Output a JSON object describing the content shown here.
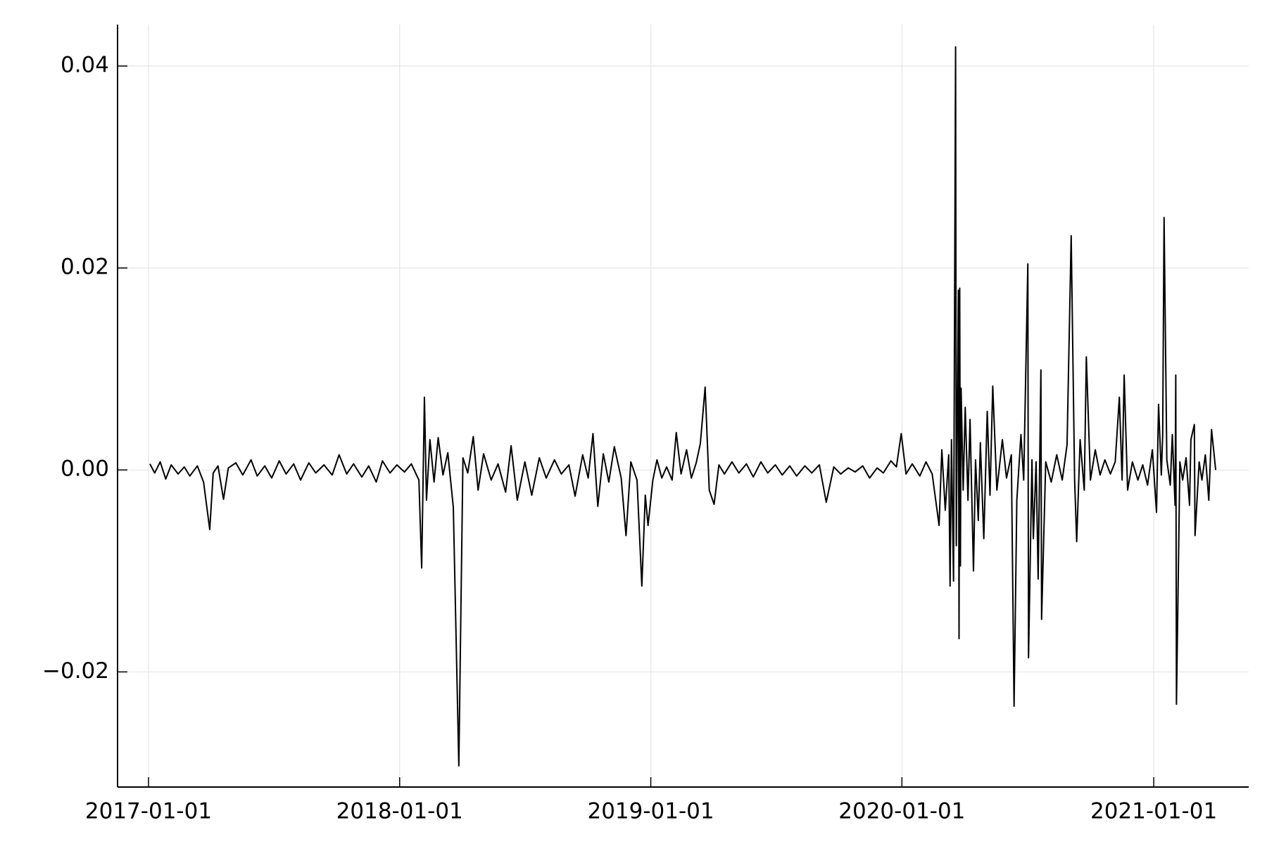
{
  "chart_data": {
    "type": "line",
    "color": "#000000",
    "grid": true,
    "xlim": [
      "2016-11-17",
      "2021-05-19"
    ],
    "xticks": [
      "2017-01-01",
      "2018-01-01",
      "2019-01-01",
      "2020-01-01",
      "2021-01-01"
    ],
    "ylim": [
      -0.0314,
      0.0441
    ],
    "yticks": [
      {
        "value": -0.02,
        "label": "−0.02"
      },
      {
        "value": 0,
        "label": "0.00"
      },
      0.02,
      0.04
    ],
    "x": [
      "2017-01-03",
      "2017-01-10",
      "2017-01-18",
      "2017-01-26",
      "2017-02-03",
      "2017-02-13",
      "2017-02-22",
      "2017-03-02",
      "2017-03-13",
      "2017-03-22",
      "2017-03-31",
      "2017-04-05",
      "2017-04-12",
      "2017-04-20",
      "2017-04-27",
      "2017-05-08",
      "2017-05-18",
      "2017-05-30",
      "2017-06-08",
      "2017-06-19",
      "2017-06-29",
      "2017-07-10",
      "2017-07-20",
      "2017-07-31",
      "2017-08-10",
      "2017-08-22",
      "2017-09-01",
      "2017-09-13",
      "2017-09-25",
      "2017-10-05",
      "2017-10-16",
      "2017-10-26",
      "2017-11-07",
      "2017-11-17",
      "2017-11-28",
      "2017-12-07",
      "2017-12-18",
      "2017-12-28",
      "2018-01-08",
      "2018-01-18",
      "2018-01-29",
      "2018-02-02",
      "2018-02-06",
      "2018-02-09",
      "2018-02-14",
      "2018-02-20",
      "2018-02-26",
      "2018-03-05",
      "2018-03-12",
      "2018-03-20",
      "2018-03-28",
      "2018-04-03",
      "2018-04-10",
      "2018-04-18",
      "2018-04-25",
      "2018-05-03",
      "2018-05-14",
      "2018-05-24",
      "2018-06-04",
      "2018-06-12",
      "2018-06-21",
      "2018-07-02",
      "2018-07-12",
      "2018-07-23",
      "2018-08-02",
      "2018-08-14",
      "2018-08-24",
      "2018-09-04",
      "2018-09-13",
      "2018-09-24",
      "2018-10-02",
      "2018-10-09",
      "2018-10-16",
      "2018-10-24",
      "2018-11-01",
      "2018-11-09",
      "2018-11-19",
      "2018-11-26",
      "2018-12-03",
      "2018-12-12",
      "2018-12-19",
      "2018-12-24",
      "2018-12-28",
      "2019-01-04",
      "2019-01-10",
      "2019-01-17",
      "2019-01-24",
      "2019-02-01",
      "2019-02-07",
      "2019-02-14",
      "2019-02-22",
      "2019-03-01",
      "2019-03-08",
      "2019-03-14",
      "2019-03-21",
      "2019-03-27",
      "2019-04-03",
      "2019-04-10",
      "2019-04-18",
      "2019-04-29",
      "2019-05-09",
      "2019-05-20",
      "2019-05-30",
      "2019-06-10",
      "2019-06-20",
      "2019-07-01",
      "2019-07-11",
      "2019-07-22",
      "2019-08-01",
      "2019-08-13",
      "2019-08-23",
      "2019-09-03",
      "2019-09-13",
      "2019-09-24",
      "2019-10-04",
      "2019-10-15",
      "2019-10-25",
      "2019-11-05",
      "2019-11-15",
      "2019-11-26",
      "2019-12-05",
      "2019-12-16",
      "2019-12-24",
      "2019-12-31",
      "2020-01-07",
      "2020-01-16",
      "2020-01-27",
      "2020-02-05",
      "2020-02-14",
      "2020-02-24",
      "2020-02-28",
      "2020-03-04",
      "2020-03-09",
      "2020-03-11",
      "2020-03-13",
      "2020-03-16",
      "2020-03-19",
      "2020-03-20",
      "2020-03-23",
      "2020-03-24",
      "2020-03-25",
      "2020-03-26",
      "2020-03-27",
      "2020-03-30",
      "2020-04-02",
      "2020-04-06",
      "2020-04-09",
      "2020-04-14",
      "2020-04-17",
      "2020-04-21",
      "2020-04-24",
      "2020-04-29",
      "2020-05-04",
      "2020-05-08",
      "2020-05-12",
      "2020-05-18",
      "2020-05-26",
      "2020-06-01",
      "2020-06-08",
      "2020-06-12",
      "2020-06-16",
      "2020-06-22",
      "2020-06-26",
      "2020-07-02",
      "2020-07-03",
      "2020-07-08",
      "2020-07-10",
      "2020-07-14",
      "2020-07-17",
      "2020-07-21",
      "2020-07-22",
      "2020-07-28",
      "2020-08-05",
      "2020-08-13",
      "2020-08-21",
      "2020-08-28",
      "2020-09-03",
      "2020-09-08",
      "2020-09-11",
      "2020-09-16",
      "2020-09-22",
      "2020-09-25",
      "2020-10-01",
      "2020-10-08",
      "2020-10-15",
      "2020-10-22",
      "2020-10-30",
      "2020-11-06",
      "2020-11-12",
      "2020-11-16",
      "2020-11-19",
      "2020-11-24",
      "2020-12-01",
      "2020-12-09",
      "2020-12-16",
      "2020-12-23",
      "2020-12-30",
      "2021-01-05",
      "2021-01-08",
      "2021-01-12",
      "2021-01-14",
      "2021-01-16",
      "2021-01-20",
      "2021-01-25",
      "2021-01-28",
      "2021-02-01",
      "2021-02-02",
      "2021-02-03",
      "2021-02-08",
      "2021-02-12",
      "2021-02-17",
      "2021-02-22",
      "2021-02-24",
      "2021-03-01",
      "2021-03-02",
      "2021-03-08",
      "2021-03-12",
      "2021-03-17",
      "2021-03-22",
      "2021-03-26",
      "2021-04-01"
    ],
    "values": [
      0.0006,
      -0.0003,
      0.0008,
      -0.0009,
      0.0005,
      -0.0004,
      0.0003,
      -0.0006,
      0.0004,
      -0.0012,
      -0.0059,
      -0.0003,
      0.0004,
      -0.0029,
      0.0002,
      0.0007,
      -0.0005,
      0.001,
      -0.0006,
      0.0004,
      -0.0008,
      0.0009,
      -0.0004,
      0.0006,
      -0.001,
      0.0007,
      -0.0003,
      0.0005,
      -0.0005,
      0.0015,
      -0.0004,
      0.0006,
      -0.0007,
      0.0004,
      -0.0012,
      0.0009,
      -0.0003,
      0.0005,
      -0.0002,
      0.0006,
      -0.001,
      -0.0097,
      0.0072,
      -0.003,
      0.003,
      -0.0012,
      0.0032,
      -0.0005,
      0.0017,
      -0.0037,
      -0.0293,
      0.0012,
      -0.0003,
      0.0033,
      -0.002,
      0.0016,
      -0.001,
      0.0006,
      -0.0022,
      0.0024,
      -0.003,
      0.0008,
      -0.0025,
      0.0012,
      -0.0008,
      0.001,
      -0.0004,
      0.0005,
      -0.0026,
      0.0015,
      -0.0008,
      0.0036,
      -0.0036,
      0.0016,
      -0.0012,
      0.0023,
      -0.0008,
      -0.0065,
      0.0008,
      -0.001,
      -0.0115,
      -0.0025,
      -0.0055,
      -0.001,
      0.001,
      -0.0008,
      0.0003,
      -0.001,
      0.0037,
      -0.0004,
      0.002,
      -0.0008,
      0.0007,
      0.0026,
      0.0082,
      -0.002,
      -0.0034,
      0.0005,
      -0.0004,
      0.0008,
      -0.0003,
      0.0006,
      -0.0007,
      0.0008,
      -0.0003,
      0.0005,
      -0.0005,
      0.0004,
      -0.0006,
      0.0004,
      -0.0003,
      0.0005,
      -0.0032,
      0.0003,
      -0.0004,
      0.0002,
      -0.0002,
      0.0004,
      -0.0008,
      0.0002,
      -0.0003,
      0.0009,
      0.0003,
      0.0036,
      -0.0004,
      0.0006,
      -0.0006,
      0.0008,
      -0.0004,
      -0.0055,
      0.002,
      -0.004,
      0.0015,
      -0.0115,
      0.003,
      -0.011,
      0.0419,
      -0.0075,
      0.0178,
      -0.0167,
      0.018,
      -0.0095,
      0.0081,
      -0.002,
      0.0062,
      -0.003,
      0.005,
      -0.01,
      0.001,
      -0.005,
      0.0027,
      -0.0068,
      0.0058,
      -0.0025,
      0.0083,
      -0.002,
      0.003,
      -0.0008,
      0.0015,
      -0.0234,
      -0.003,
      0.0035,
      -0.001,
      0.0204,
      -0.0186,
      0.001,
      -0.0068,
      0.0008,
      -0.0108,
      0.0099,
      -0.0148,
      0.0008,
      -0.0012,
      0.0015,
      -0.001,
      0.0025,
      0.0232,
      -0.001,
      -0.0071,
      0.003,
      -0.002,
      0.0112,
      -0.001,
      0.002,
      -0.0005,
      0.001,
      -0.0004,
      0.0008,
      0.0072,
      -0.001,
      0.0094,
      -0.002,
      0.0008,
      -0.001,
      0.0005,
      -0.0015,
      0.002,
      -0.0042,
      0.0065,
      -0.0005,
      0.0035,
      0.025,
      0.001,
      -0.0015,
      0.0035,
      -0.0035,
      0.0094,
      -0.0232,
      0.0008,
      -0.001,
      0.0012,
      -0.0035,
      0.003,
      0.0045,
      -0.0065,
      0.0008,
      -0.001,
      0.0015,
      -0.003,
      0.004,
      0
    ]
  }
}
